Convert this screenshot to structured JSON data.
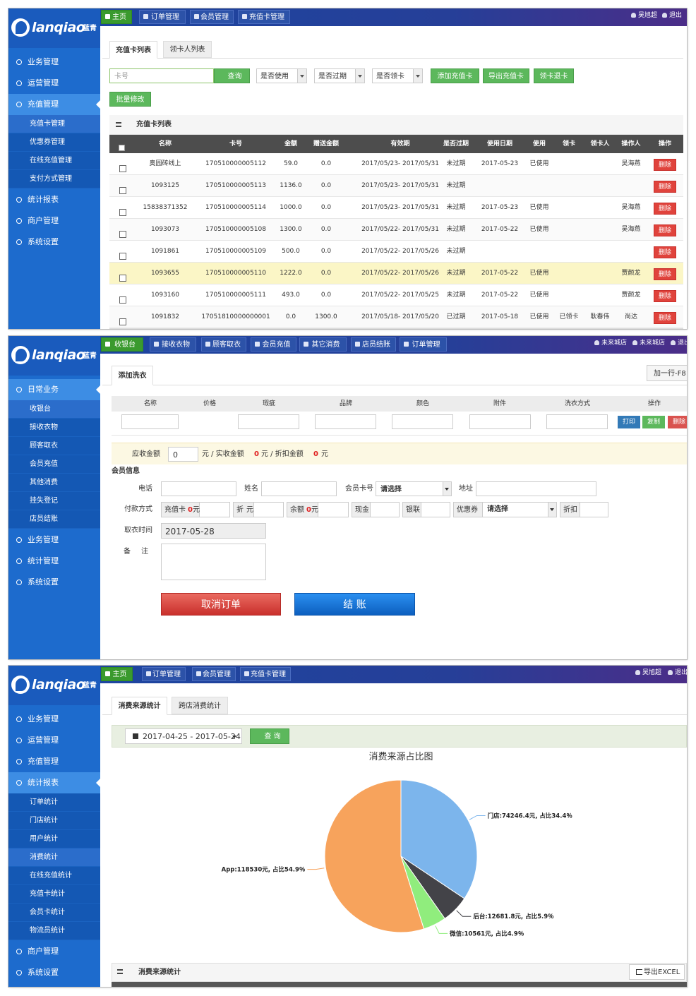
{
  "panels": [
    {
      "logo": "lanqiao",
      "logo_sub": "蓝青",
      "nav": [
        "主页",
        "订单管理",
        "会员管理",
        "充值卡管理"
      ],
      "nav_active": 0,
      "user": [
        "吴旭超",
        "退出"
      ],
      "sidebar": [
        {
          "label": "业务管理"
        },
        {
          "label": "运营管理"
        },
        {
          "label": "充值管理",
          "active": true,
          "children": [
            {
              "label": "充值卡管理",
              "active": true
            },
            {
              "label": "优惠券管理"
            },
            {
              "label": "在线充值管理"
            },
            {
              "label": "支付方式管理"
            }
          ]
        },
        {
          "label": "统计报表"
        },
        {
          "label": "商户管理"
        },
        {
          "label": "系统设置"
        }
      ],
      "tabs": [
        "充值卡列表",
        "领卡人列表"
      ],
      "search_placeholder": "卡号",
      "search_button": "查询",
      "selects": [
        "是否使用",
        "是否过期",
        "是否领卡"
      ],
      "buttons": [
        "添加充值卡",
        "导出充值卡",
        "领卡退卡"
      ],
      "batch_button": "批量修改",
      "table": {
        "title": "充值卡列表",
        "columns": [
          "名称",
          "卡号",
          "金额",
          "赠送金额",
          "有效期",
          "是否过期",
          "使用日期",
          "使用",
          "领卡",
          "领卡人",
          "操作人",
          "操作"
        ],
        "highlight_row": 5,
        "rows": [
          [
            "奥园砖线上",
            "170510000005112",
            "59.0",
            "0.0",
            "2017/05/23- 2017/05/31",
            "未过期",
            "2017-05-23",
            "已使用",
            null,
            null,
            "吴海燕",
            "删除"
          ],
          [
            "1093125",
            "170510000005113",
            "1136.0",
            "0.0",
            "2017/05/23- 2017/05/31",
            "未过期",
            null,
            null,
            null,
            null,
            null,
            "删除"
          ],
          [
            "15838371352",
            "170510000005114",
            "1000.0",
            "0.0",
            "2017/05/23- 2017/05/31",
            "未过期",
            "2017-05-23",
            "已使用",
            null,
            null,
            "吴海燕",
            "删除"
          ],
          [
            "1093073",
            "170510000005108",
            "1300.0",
            "0.0",
            "2017/05/22- 2017/05/31",
            "未过期",
            "2017-05-22",
            "已使用",
            null,
            null,
            "吴海燕",
            "删除"
          ],
          [
            "1091861",
            "170510000005109",
            "500.0",
            "0.0",
            "2017/05/22- 2017/05/26",
            "未过期",
            null,
            null,
            null,
            null,
            null,
            "删除"
          ],
          [
            "1093655",
            "170510000005110",
            "1222.0",
            "0.0",
            "2017/05/22- 2017/05/26",
            "未过期",
            "2017-05-22",
            "已使用",
            null,
            null,
            "贾颜龙",
            "删除"
          ],
          [
            "1093160",
            "170510000005111",
            "493.0",
            "0.0",
            "2017/05/22- 2017/05/25",
            "未过期",
            "2017-05-22",
            "已使用",
            null,
            null,
            "贾颜龙",
            "删除"
          ],
          [
            "1091832",
            "17051810000000001",
            "0.0",
            "1300.0",
            "2017/05/18- 2017/05/20",
            "已过期",
            "2017-05-18",
            "已使用",
            "已领卡",
            "耿春伟",
            "尚达",
            "删除"
          ]
        ]
      }
    },
    {
      "logo": "lanqiao",
      "logo_sub": "蓝青",
      "nav": [
        "收银台",
        "接收衣物",
        "顾客取衣",
        "会员充值",
        "其它消费",
        "店员结账",
        "订单管理"
      ],
      "nav_active": 0,
      "user": [
        "未来城店",
        "未来城店",
        "退出"
      ],
      "sidebar": [
        {
          "label": "日常业务",
          "active": true,
          "children": [
            {
              "label": "收银台",
              "active": true
            },
            {
              "label": "接收衣物"
            },
            {
              "label": "顾客取衣"
            },
            {
              "label": "会员充值"
            },
            {
              "label": "其他消费"
            },
            {
              "label": "挂失登记"
            },
            {
              "label": "店员结账"
            }
          ]
        },
        {
          "label": "业务管理"
        },
        {
          "label": "统计管理"
        },
        {
          "label": "系统设置"
        }
      ],
      "tabs": [
        "添加洗衣"
      ],
      "add_row": "加一行-F8",
      "columns": [
        "名称",
        "价格",
        "瑕疵",
        "品牌",
        "颜色",
        "附件",
        "洗衣方式",
        "操作"
      ],
      "row_buttons": [
        "打印",
        "复制",
        "删除"
      ],
      "summary": [
        "应收金额",
        "0",
        "元 / 实收金额",
        "0",
        "元 / 折扣金额",
        "0",
        "元"
      ],
      "member": {
        "title": "会员信息",
        "phone": "电话",
        "name": "姓名",
        "card": "会员卡号",
        "card_select": "请选择",
        "address": "地址"
      },
      "payment": {
        "label": "付款方式",
        "items": [
          {
            "label": "充值卡",
            "value": "0",
            "unit": "元"
          },
          {
            "label": "折",
            "unit": "元"
          },
          {
            "label": "余额",
            "value": "0",
            "unit": "元"
          },
          {
            "label": "现金"
          },
          {
            "label": "银联"
          },
          {
            "label": "优惠券",
            "select": "请选择"
          },
          {
            "label": "折扣"
          }
        ]
      },
      "pickup": {
        "label": "取衣时间",
        "value": "2017-05-28"
      },
      "remark": "备 注",
      "actions": [
        "取消订单",
        "结 账"
      ]
    },
    {
      "logo": "lanqiao",
      "logo_sub": "蓝青",
      "nav": [
        "主页",
        "订单管理",
        "会员管理",
        "充值卡管理"
      ],
      "nav_active": 0,
      "user": [
        "吴旭超",
        "退出"
      ],
      "sidebar": [
        {
          "label": "业务管理"
        },
        {
          "label": "运营管理"
        },
        {
          "label": "充值管理"
        },
        {
          "label": "统计报表",
          "active": true,
          "children": [
            {
              "label": "订单统计"
            },
            {
              "label": "门店统计"
            },
            {
              "label": "用户统计"
            },
            {
              "label": "消费统计",
              "active": true
            },
            {
              "label": "在线充值统计"
            },
            {
              "label": "充值卡统计"
            },
            {
              "label": "会员卡统计"
            },
            {
              "label": "物流员统计"
            }
          ]
        },
        {
          "label": "商户管理"
        },
        {
          "label": "系统设置"
        }
      ],
      "tabs": [
        "消费来源统计",
        "跨店消费统计"
      ],
      "date_range": "2017-04-25 - 2017-05-24",
      "query_button": "查 询",
      "chart": {
        "type": "pie",
        "title": "消费来源占比图",
        "values": [
          74246.4,
          12681.8,
          10561,
          118530
        ],
        "value_labels": [
          "门店:74246.4元, 占比34.4％",
          "后台:12681.8元, 占比5.9％",
          "微信:10561元, 占比4.9％",
          "App:118530元, 占比54.9％"
        ],
        "colors": [
          "#7cb5ec",
          "#434348",
          "#90ed7d",
          "#f7a35c"
        ]
      },
      "table_title": "消费来源统计",
      "export_button": "导出EXCEL"
    }
  ]
}
